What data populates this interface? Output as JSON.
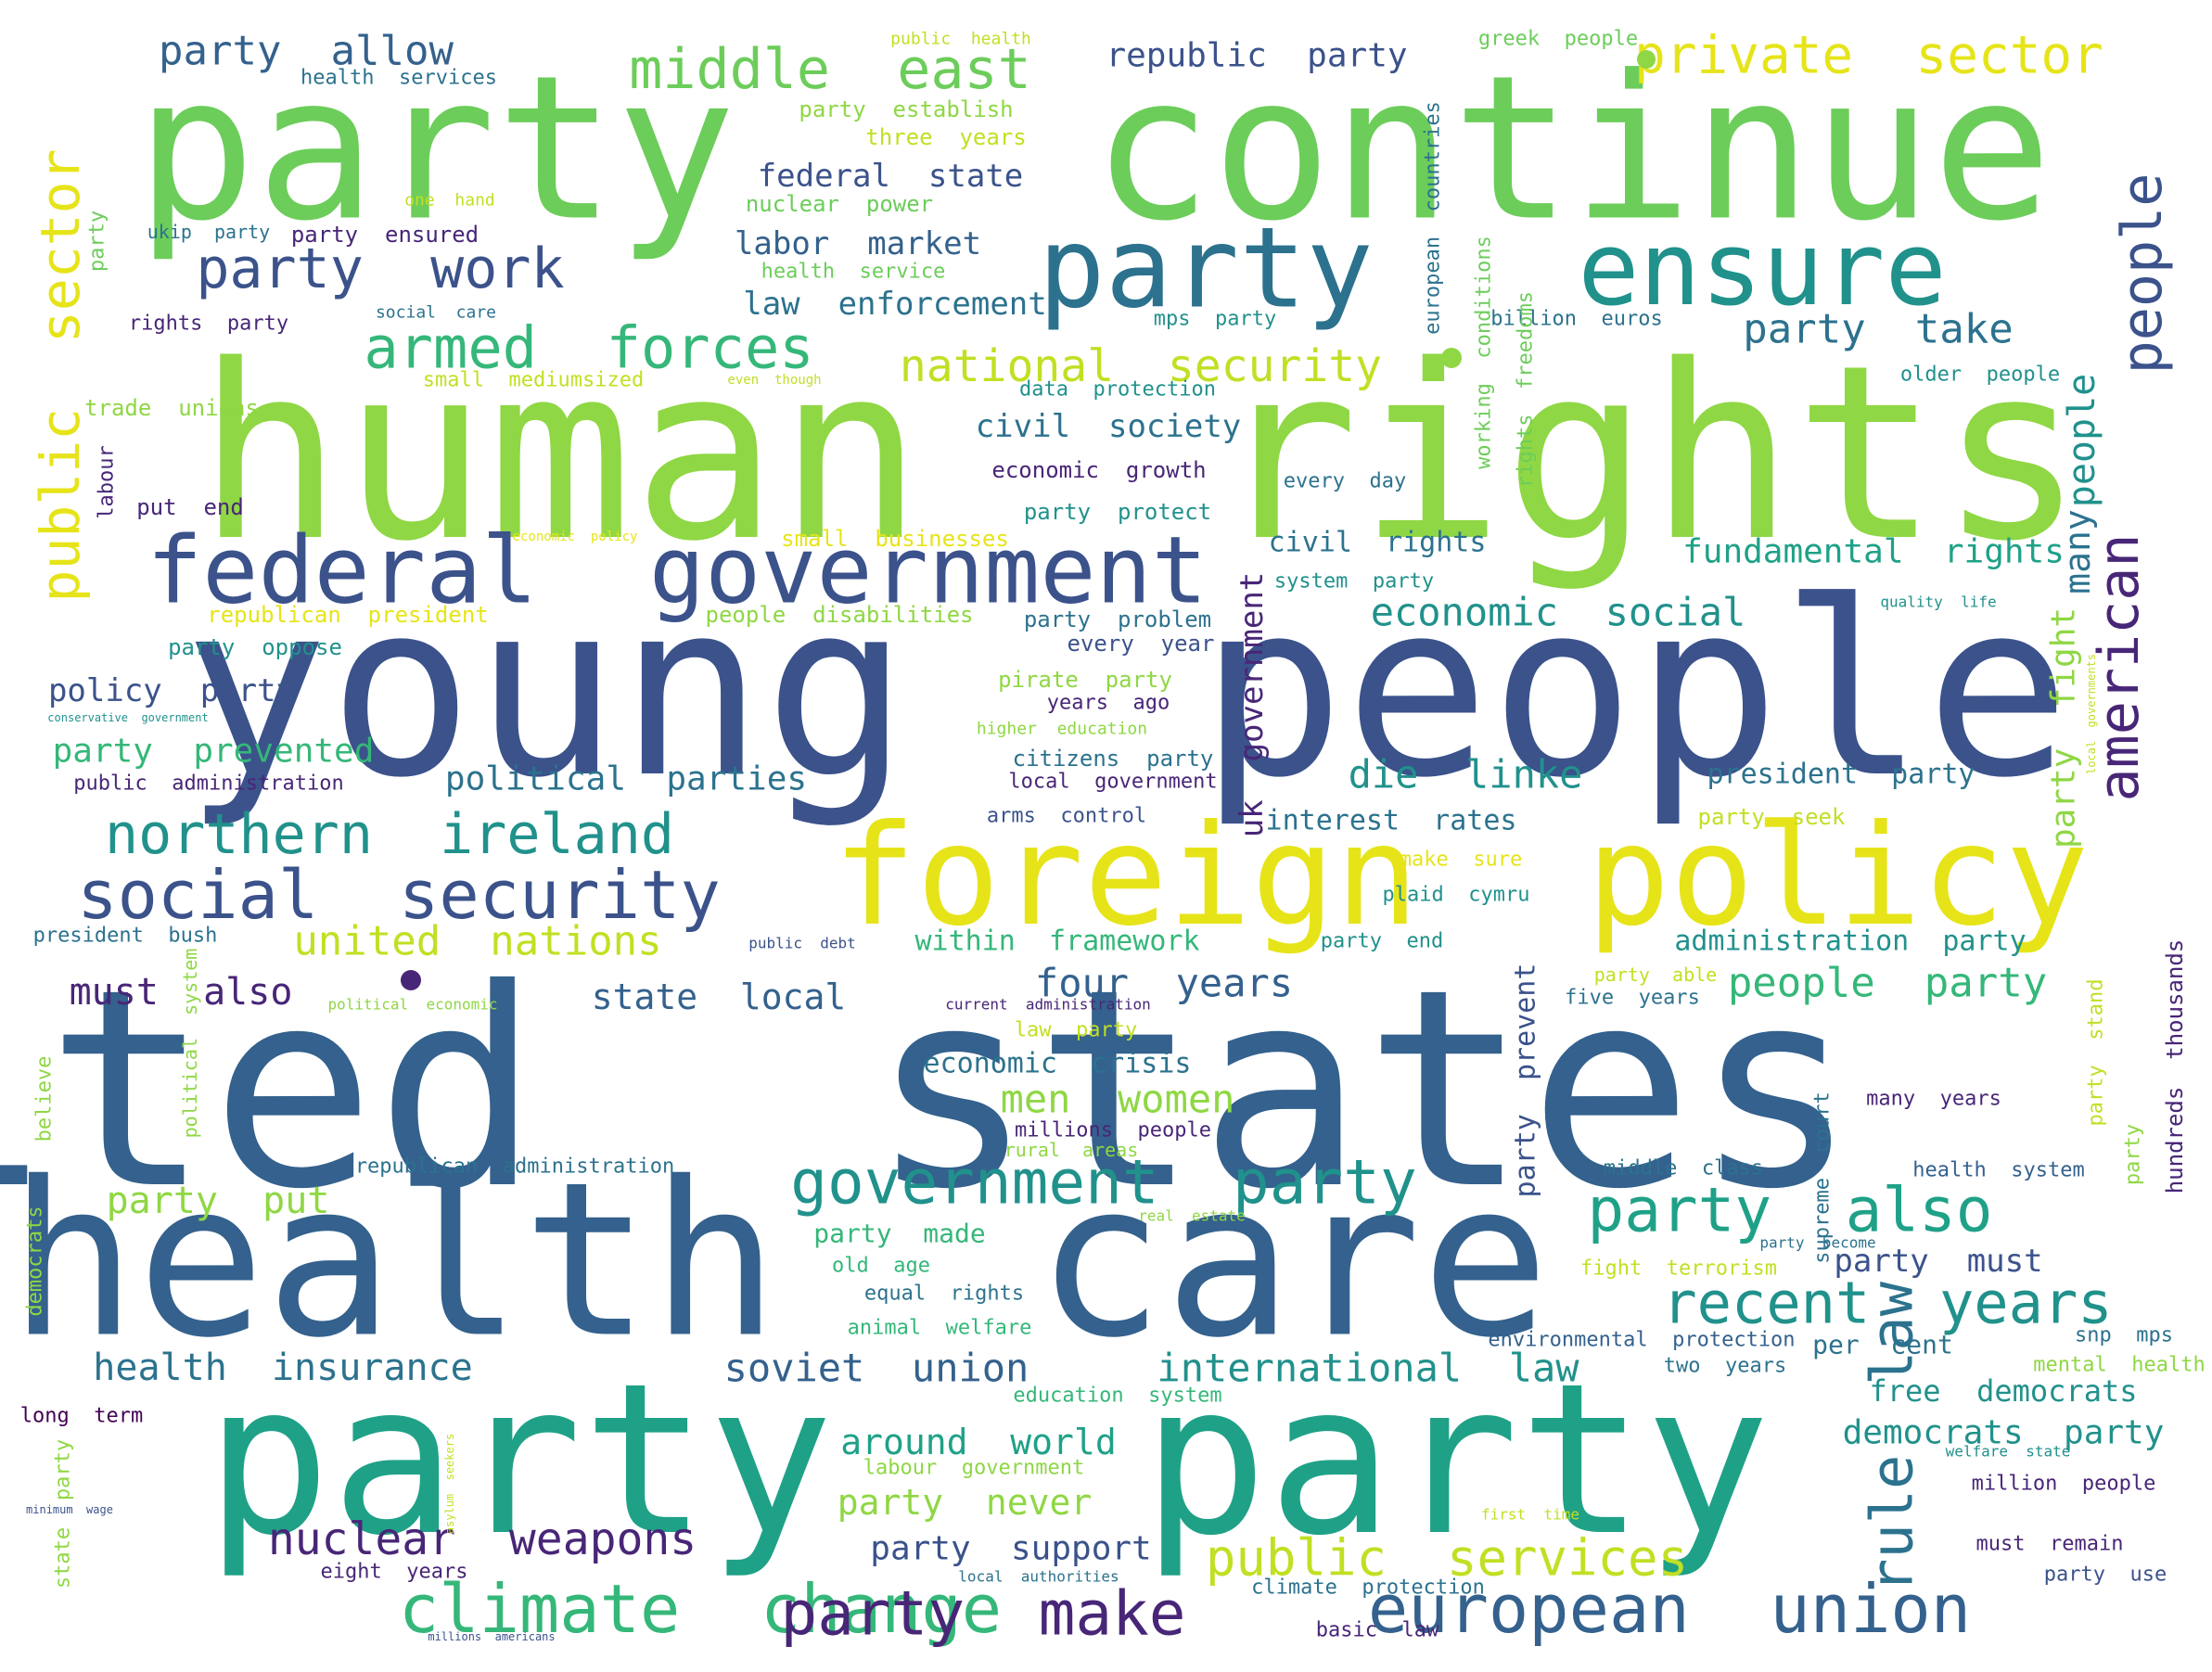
{
  "palette": {
    "dark_purple": "#482677",
    "navy": "#3b528b",
    "steel_blue": "#34618d",
    "teal_blue": "#2c728e",
    "teal": "#21918c",
    "sea_green": "#1fa187",
    "green": "#35b779",
    "light_green": "#6ccd5a",
    "lime": "#8fd744",
    "yellow_green": "#c2df23",
    "yellow": "#e6e419",
    "deep_purple": "#440154"
  },
  "words": [
    {
      "text": "united  states",
      "color": "#34618d"
    },
    {
      "text": "human  rights",
      "color": "#8fd744"
    },
    {
      "text": "young  people",
      "color": "#3b528b"
    },
    {
      "text": "health  care",
      "color": "#34618d"
    },
    {
      "text": "party",
      "color": "#1fa187"
    },
    {
      "text": "party",
      "color": "#1fa187"
    },
    {
      "text": "party",
      "color": "#6ccd5a"
    },
    {
      "text": "continue",
      "color": "#6ccd5a"
    },
    {
      "text": "foreign  policy",
      "color": "#e6e419"
    },
    {
      "text": "federal  government",
      "color": "#3b528b"
    },
    {
      "text": "party",
      "color": "#2c728e"
    },
    {
      "text": "ensure",
      "color": "#21918c"
    },
    {
      "text": "climate  change",
      "color": "#35b779"
    },
    {
      "text": "social  security",
      "color": "#3b528b"
    },
    {
      "text": "european  union",
      "color": "#34618d"
    },
    {
      "text": "government  party",
      "color": "#21918c"
    },
    {
      "text": "party  make",
      "color": "#482677"
    },
    {
      "text": "northern  ireland",
      "color": "#21918c"
    },
    {
      "text": "party  also",
      "color": "#1fa187"
    },
    {
      "text": "armed  forces",
      "color": "#35b779"
    },
    {
      "text": "middle  east",
      "color": "#6ccd5a"
    },
    {
      "text": "party  work",
      "color": "#3b528b"
    },
    {
      "text": "private  sector",
      "color": "#e6e419"
    },
    {
      "text": "recent  years",
      "color": "#21918c"
    },
    {
      "text": "public  services",
      "color": "#c2df23"
    },
    {
      "text": "nuclear  weapons",
      "color": "#482677"
    },
    {
      "text": "rule  law",
      "color": "#2c728e"
    },
    {
      "text": "american",
      "color": "#482677"
    },
    {
      "text": "people",
      "color": "#3b528b"
    },
    {
      "text": "public  sector",
      "color": "#e6e419"
    },
    {
      "text": "national  security",
      "color": "#c2df23"
    },
    {
      "text": "soviet  union",
      "color": "#34618d"
    },
    {
      "text": "international  law",
      "color": "#21918c"
    },
    {
      "text": "health  insurance",
      "color": "#2c728e"
    },
    {
      "text": "united  nations",
      "color": "#c2df23"
    },
    {
      "text": "people  party",
      "color": "#35b779"
    },
    {
      "text": "four  years",
      "color": "#34618d"
    },
    {
      "text": "men  women",
      "color": "#8fd744"
    },
    {
      "text": "die  linke",
      "color": "#21918c"
    },
    {
      "text": "economic  social",
      "color": "#21918c"
    },
    {
      "text": "party  allow",
      "color": "#34618d"
    },
    {
      "text": "party  take",
      "color": "#2c728e"
    },
    {
      "text": "around  world",
      "color": "#1fa187"
    },
    {
      "text": "party  never",
      "color": "#8fd744"
    },
    {
      "text": "party  put",
      "color": "#8fd744"
    },
    {
      "text": "must  also",
      "color": "#482677"
    },
    {
      "text": "state  local",
      "color": "#34618d"
    },
    {
      "text": "political  parties",
      "color": "#2c728e"
    },
    {
      "text": "party  prevented",
      "color": "#35b779"
    },
    {
      "text": "fundamental  rights",
      "color": "#1fa187"
    },
    {
      "text": "democrats  party",
      "color": "#21918c"
    },
    {
      "text": "party  support",
      "color": "#3b528b"
    },
    {
      "text": "civil  society",
      "color": "#2c728e"
    },
    {
      "text": "law  enforcement",
      "color": "#2c728e"
    },
    {
      "text": "federal  state",
      "color": "#3b528b"
    },
    {
      "text": "labor  market",
      "color": "#34618d"
    },
    {
      "text": "republic  party",
      "color": "#3b528b"
    },
    {
      "text": "people",
      "color": "#21918c"
    },
    {
      "text": "many",
      "color": "#2c728e"
    },
    {
      "text": "party  fight",
      "color": "#8fd744"
    },
    {
      "text": "uk  government",
      "color": "#482677"
    },
    {
      "text": "policy  party",
      "color": "#3b528b"
    },
    {
      "text": "party  must",
      "color": "#3b528b"
    },
    {
      "text": "free  democrats",
      "color": "#21918c"
    },
    {
      "text": "president  party",
      "color": "#2c728e"
    },
    {
      "text": "interest  rates",
      "color": "#2c728e"
    },
    {
      "text": "economic  crisis",
      "color": "#2c728e"
    },
    {
      "text": "within  framework",
      "color": "#35b779"
    },
    {
      "text": "administration  party",
      "color": "#21918c"
    },
    {
      "text": "civil  rights",
      "color": "#2c728e"
    },
    {
      "text": "party  prevent",
      "color": "#3b528b"
    },
    {
      "text": "party  made",
      "color": "#35b779"
    },
    {
      "text": "per  cent",
      "color": "#2c728e"
    },
    {
      "text": "health  service",
      "color": "#6ccd5a"
    },
    {
      "text": "nuclear  power",
      "color": "#6ccd5a"
    },
    {
      "text": "party  establish",
      "color": "#8fd744"
    },
    {
      "text": "three  years",
      "color": "#c2df23"
    },
    {
      "text": "greek  people",
      "color": "#6ccd5a"
    },
    {
      "text": "public  health",
      "color": "#c2df23"
    },
    {
      "text": "health  services",
      "color": "#2c728e"
    },
    {
      "text": "one  hand",
      "color": "#c2df23"
    },
    {
      "text": "ukip  party",
      "color": "#2c728e"
    },
    {
      "text": "party  ensured",
      "color": "#482677"
    },
    {
      "text": "rights  party",
      "color": "#482677"
    },
    {
      "text": "social  care",
      "color": "#2c728e"
    },
    {
      "text": "small  mediumsized",
      "color": "#c2df23"
    },
    {
      "text": "even  though",
      "color": "#c2df23"
    },
    {
      "text": "trade  unions",
      "color": "#8fd744"
    },
    {
      "text": "put  end",
      "color": "#482677"
    },
    {
      "text": "economic  policy",
      "color": "#e6e419"
    },
    {
      "text": "small  businesses",
      "color": "#e6e419"
    },
    {
      "text": "republican  president",
      "color": "#e6e419"
    },
    {
      "text": "people  disabilities",
      "color": "#8fd744"
    },
    {
      "text": "party  oppose",
      "color": "#21918c"
    },
    {
      "text": "conservative  government",
      "color": "#21918c"
    },
    {
      "text": "public  administration",
      "color": "#482677"
    },
    {
      "text": "party  problem",
      "color": "#2c728e"
    },
    {
      "text": "every  year",
      "color": "#3b528b"
    },
    {
      "text": "pirate  party",
      "color": "#8fd744"
    },
    {
      "text": "years  ago",
      "color": "#482677"
    },
    {
      "text": "higher  education",
      "color": "#8fd744"
    },
    {
      "text": "citizens  party",
      "color": "#2c728e"
    },
    {
      "text": "local  government",
      "color": "#482677"
    },
    {
      "text": "arms  control",
      "color": "#3b528b"
    },
    {
      "text": "economic  growth",
      "color": "#482677"
    },
    {
      "text": "party  protect",
      "color": "#21918c"
    },
    {
      "text": "data  protection",
      "color": "#21918c"
    },
    {
      "text": "mps  party",
      "color": "#21918c"
    },
    {
      "text": "billion  euros",
      "color": "#2c728e"
    },
    {
      "text": "older  people",
      "color": "#21918c"
    },
    {
      "text": "every  day",
      "color": "#2c728e"
    },
    {
      "text": "system  party",
      "color": "#21918c"
    },
    {
      "text": "quality  life",
      "color": "#21918c"
    },
    {
      "text": "local  governments",
      "color": "#c2df23"
    },
    {
      "text": "party  seek",
      "color": "#c2df23"
    },
    {
      "text": "make  sure",
      "color": "#e6e419"
    },
    {
      "text": "plaid  cymru",
      "color": "#21918c"
    },
    {
      "text": "party  end",
      "color": "#21918c"
    },
    {
      "text": "party  able",
      "color": "#c2df23"
    },
    {
      "text": "five  years",
      "color": "#2c728e"
    },
    {
      "text": "public  debt",
      "color": "#3b528b"
    },
    {
      "text": "current  administration",
      "color": "#482677"
    },
    {
      "text": "law  party",
      "color": "#c2df23"
    },
    {
      "text": "president  bush",
      "color": "#2c728e"
    },
    {
      "text": "political  economic",
      "color": "#8fd744"
    },
    {
      "text": "political  system",
      "color": "#8fd744"
    },
    {
      "text": "believe",
      "color": "#8fd744"
    },
    {
      "text": "democrats",
      "color": "#8fd744"
    },
    {
      "text": "millions  people",
      "color": "#482677"
    },
    {
      "text": "rural  areas",
      "color": "#8fd744"
    },
    {
      "text": "republican  administration",
      "color": "#2c728e"
    },
    {
      "text": "real  estate",
      "color": "#8fd744"
    },
    {
      "text": "old  age",
      "color": "#35b779"
    },
    {
      "text": "equal  rights",
      "color": "#2c728e"
    },
    {
      "text": "animal  welfare",
      "color": "#35b779"
    },
    {
      "text": "education  system",
      "color": "#35b779"
    },
    {
      "text": "labour  government",
      "color": "#8fd744"
    },
    {
      "text": "local  authorities",
      "color": "#2c728e"
    },
    {
      "text": "eight  years",
      "color": "#482677"
    },
    {
      "text": "climate  protection",
      "color": "#2c728e"
    },
    {
      "text": "basic  law",
      "color": "#482677"
    },
    {
      "text": "millions  americans",
      "color": "#3b528b"
    },
    {
      "text": "first  time",
      "color": "#c2df23"
    },
    {
      "text": "must  remain",
      "color": "#482677"
    },
    {
      "text": "party  use",
      "color": "#3b528b"
    },
    {
      "text": "million  people",
      "color": "#482677"
    },
    {
      "text": "welfare  state",
      "color": "#21918c"
    },
    {
      "text": "mental  health",
      "color": "#8fd744"
    },
    {
      "text": "snp  mps",
      "color": "#2c728e"
    },
    {
      "text": "two  years",
      "color": "#2c728e"
    },
    {
      "text": "environmental  protection",
      "color": "#34618d"
    },
    {
      "text": "fight  terrorism",
      "color": "#c2df23"
    },
    {
      "text": "party  become",
      "color": "#2c728e"
    },
    {
      "text": "middle  class",
      "color": "#2c728e"
    },
    {
      "text": "health  system",
      "color": "#34618d"
    },
    {
      "text": "many  years",
      "color": "#482677"
    },
    {
      "text": "long  term",
      "color": "#440154"
    },
    {
      "text": "minimum  wage",
      "color": "#3b528b"
    },
    {
      "text": "asylum  seekers",
      "color": "#c2df23"
    },
    {
      "text": "party",
      "color": "#8fd744"
    },
    {
      "text": "state",
      "color": "#8fd744"
    },
    {
      "text": "party",
      "color": "#6ccd5a"
    },
    {
      "text": "labour",
      "color": "#482677"
    },
    {
      "text": "supreme  court",
      "color": "#2c728e"
    },
    {
      "text": "party  stand",
      "color": "#c2df23"
    },
    {
      "text": "hundreds  thousands",
      "color": "#482677"
    },
    {
      "text": "party",
      "color": "#8fd744"
    },
    {
      "text": "european  countries",
      "color": "#2c728e"
    },
    {
      "text": "working  conditions",
      "color": "#6ccd5a"
    },
    {
      "text": "rights  freedoms",
      "color": "#6ccd5a"
    }
  ]
}
